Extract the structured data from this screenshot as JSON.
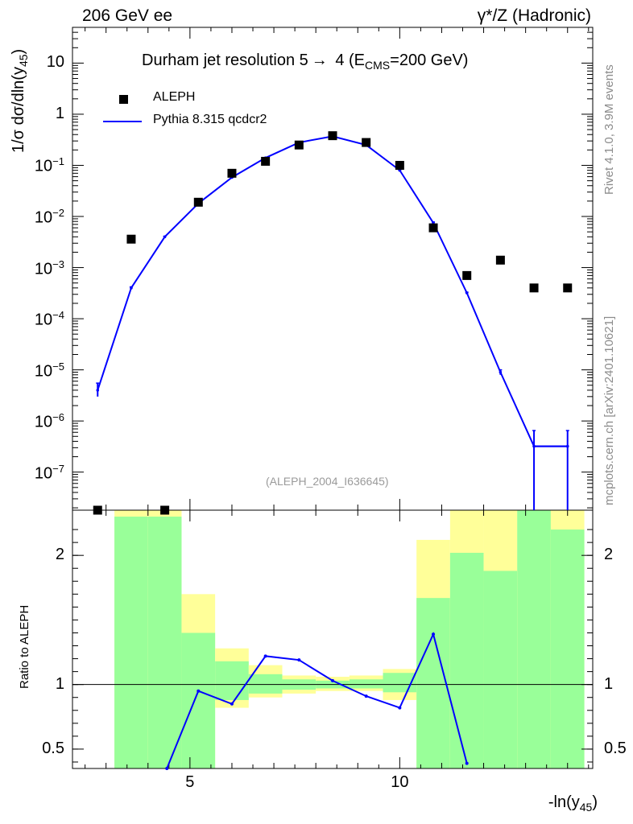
{
  "header": {
    "left": "206 GeV ee",
    "right": "γ*/Z (Hadronic)"
  },
  "side_text": {
    "rivet": "Rivet 4.1.0,  3.9M events",
    "mcplots": "mcplots.cern.ch [arXiv:2401.10621]"
  },
  "chart_data": [
    {
      "type": "scatter",
      "title_main": "Durham jet resolution 5",
      "title_tail_pre": "  4 (E",
      "title_sub": "CMS",
      "title_tail_post": "=200 GeV)",
      "ylabel_pre": "1/σ  dσ/dln(y",
      "ylabel_sub": "45",
      "ylabel_post": ")",
      "yscale": "log",
      "ylim": [
        1.8e-08,
        50
      ],
      "xlim": [
        2.2,
        14.6
      ],
      "watermark": "(ALEPH_2004_I636645)",
      "yticks": [
        {
          "v": 10,
          "base": "10",
          "exp": ""
        },
        {
          "v": 1,
          "base": "1",
          "exp": ""
        },
        {
          "v": 0.1,
          "base": "10",
          "exp": "−1"
        },
        {
          "v": 0.01,
          "base": "10",
          "exp": "−2"
        },
        {
          "v": 0.001,
          "base": "10",
          "exp": "−3"
        },
        {
          "v": 0.0001,
          "base": "10",
          "exp": "−4"
        },
        {
          "v": 1e-05,
          "base": "10",
          "exp": "−5"
        },
        {
          "v": 1e-06,
          "base": "10",
          "exp": "−6"
        },
        {
          "v": 1e-07,
          "base": "10",
          "exp": "−7"
        }
      ],
      "legend": [
        {
          "name": "ALEPH",
          "style": "marker",
          "color": "#000000"
        },
        {
          "name": "Pythia 8.315 qcdcr2",
          "style": "line",
          "color": "#0000ff"
        }
      ],
      "series": [
        {
          "name": "ALEPH",
          "color": "#000000",
          "x": [
            2.8,
            3.6,
            4.4,
            5.2,
            6.0,
            6.8,
            7.6,
            8.4,
            9.2,
            10.0,
            10.8,
            11.6,
            12.4,
            13.2,
            14.0
          ],
          "y": [
            1.5e-08,
            0.0036,
            1.5e-08,
            0.019,
            0.07,
            0.12,
            0.25,
            0.38,
            0.28,
            0.1,
            0.006,
            0.0007,
            0.0014,
            0.0004,
            0.0004
          ]
        },
        {
          "name": "Pythia 8.315 qcdcr2",
          "color": "#0000ff",
          "x": [
            2.8,
            3.6,
            4.4,
            5.2,
            6.0,
            6.8,
            7.6,
            8.4,
            9.2,
            10.0,
            10.8,
            11.6,
            12.4,
            13.2,
            14.0
          ],
          "y": [
            4e-06,
            0.0004,
            0.004,
            0.018,
            0.058,
            0.14,
            0.28,
            0.37,
            0.25,
            0.08,
            0.0075,
            0.00032,
            9e-06,
            3.2e-07,
            3.2e-07
          ],
          "y_err_low": [
            3e-06,
            0.00038,
            0.0039,
            0.0178,
            0.0575,
            0.139,
            0.279,
            0.369,
            0.249,
            0.0795,
            0.0072,
            0.00031,
            8e-06,
            1e-08,
            1e-08
          ],
          "y_err_high": [
            5.5e-06,
            0.00042,
            0.0041,
            0.0182,
            0.0585,
            0.141,
            0.281,
            0.371,
            0.251,
            0.0805,
            0.0078,
            0.00033,
            1e-05,
            6.5e-07,
            6.5e-07
          ]
        }
      ]
    },
    {
      "type": "line",
      "ylabel": "Ratio to ALEPH",
      "xlabel_pre": "-ln(y",
      "xlabel_sub": "45",
      "xlabel_post": ")",
      "ylim": [
        0.35,
        2.35
      ],
      "xlim": [
        2.2,
        14.6
      ],
      "reference_line": 1,
      "yticks": [
        {
          "v": 0.5,
          "label": "0.5"
        },
        {
          "v": 1,
          "label": "1"
        },
        {
          "v": 2,
          "label": "2"
        }
      ],
      "xticks": [
        {
          "v": 5,
          "label": "5"
        },
        {
          "v": 10,
          "label": "10"
        }
      ],
      "bands": {
        "yellow_color": "#ffff99",
        "green_color": "#99ff99",
        "edges": [
          2.4,
          3.2,
          4.0,
          4.8,
          5.6,
          6.4,
          7.2,
          8.0,
          8.8,
          9.6,
          10.4,
          11.2,
          12.0,
          12.8,
          13.6,
          14.4
        ],
        "yellow_low": [
          null,
          0.35,
          0.35,
          0.35,
          0.82,
          0.9,
          0.93,
          0.95,
          0.95,
          0.88,
          0.35,
          0.35,
          0.35,
          0.35,
          0.35
        ],
        "yellow_high": [
          null,
          2.35,
          2.35,
          1.7,
          1.28,
          1.15,
          1.07,
          1.06,
          1.07,
          1.12,
          2.12,
          2.35,
          2.35,
          2.35,
          2.35
        ],
        "green_low": [
          null,
          0.35,
          0.35,
          0.35,
          0.88,
          0.93,
          0.96,
          0.97,
          0.97,
          0.94,
          0.35,
          0.35,
          0.35,
          0.35,
          0.35
        ],
        "green_high": [
          null,
          2.3,
          2.3,
          1.4,
          1.18,
          1.08,
          1.04,
          1.03,
          1.04,
          1.09,
          1.67,
          2.02,
          1.88,
          2.35,
          2.2
        ]
      },
      "series": [
        {
          "name": "Pythia 8.315 qcdcr2",
          "color": "#0000ff",
          "x": [
            4.45,
            5.2,
            6.0,
            6.8,
            7.6,
            8.4,
            9.2,
            10.0,
            10.8,
            11.6
          ],
          "y": [
            0.35,
            0.95,
            0.85,
            1.22,
            1.19,
            1.03,
            0.91,
            0.82,
            1.39,
            0.39
          ]
        }
      ]
    }
  ]
}
